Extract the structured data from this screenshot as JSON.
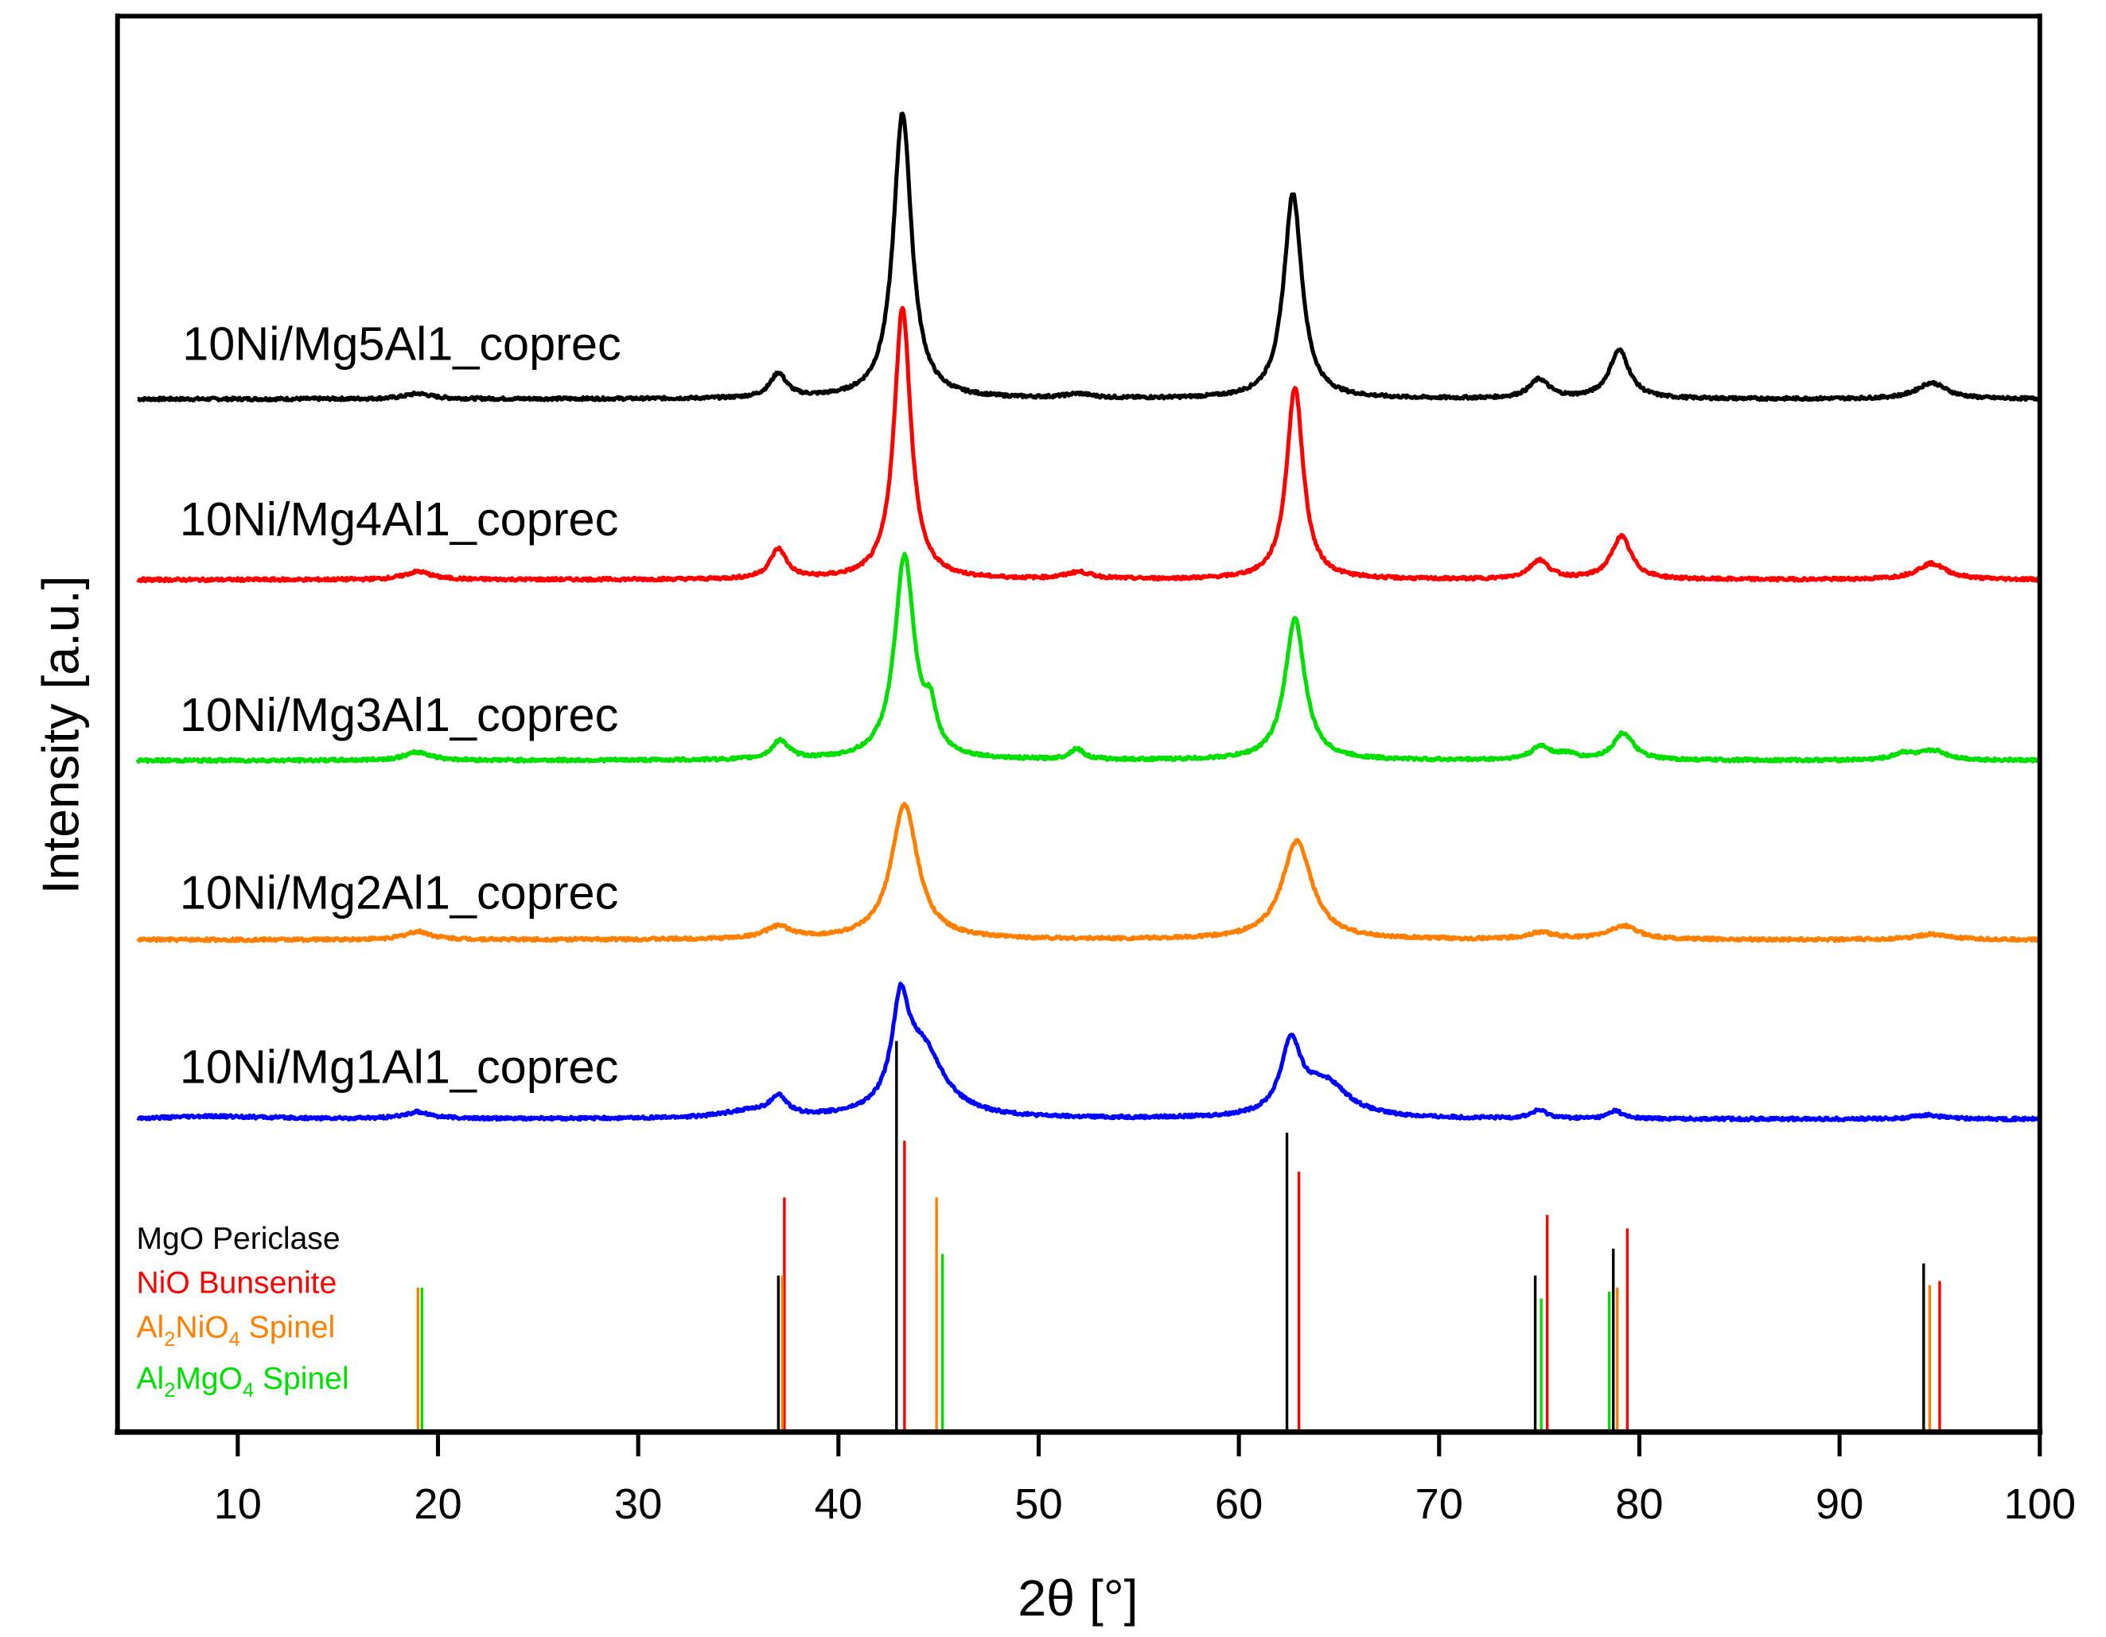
{
  "chart_data": {
    "type": "line",
    "title": "",
    "xlabel": "2θ [°]",
    "ylabel": "Intensity [a.u.]",
    "xlim": [
      4,
      100
    ],
    "x_ticks": [
      10,
      20,
      30,
      40,
      50,
      60,
      70,
      80,
      90,
      100
    ],
    "y_ticks": [],
    "grid": false,
    "legend_position": "lower-left inside",
    "series": [
      {
        "name": "10Ni/Mg5Al1_coprec",
        "color": "#000000",
        "baseline": 296,
        "peaks": [
          [
            19,
            4,
            0.8
          ],
          [
            37,
            18,
            0.5
          ],
          [
            43.2,
            212,
            0.55
          ],
          [
            52,
            3,
            0.8
          ],
          [
            62.7,
            152,
            0.55
          ],
          [
            75,
            14,
            0.6
          ],
          [
            79,
            36,
            0.6
          ],
          [
            94.6,
            12,
            0.9
          ]
        ]
      },
      {
        "name": "10Ni/Mg4Al1_coprec",
        "color": "#ff0000",
        "baseline": 430,
        "peaks": [
          [
            19,
            6,
            0.8
          ],
          [
            37,
            22,
            0.5
          ],
          [
            43.2,
            202,
            0.5
          ],
          [
            52,
            5,
            0.8
          ],
          [
            62.8,
            143,
            0.5
          ],
          [
            75,
            14,
            0.6
          ],
          [
            79.1,
            32,
            0.6
          ],
          [
            94.6,
            12,
            0.9
          ]
        ]
      },
      {
        "name": "10Ni/Mg3Al1_coprec",
        "color": "#00e000",
        "baseline": 564,
        "peaks": [
          [
            19,
            6,
            0.8
          ],
          [
            37.1,
            14,
            0.5
          ],
          [
            43.3,
            150,
            0.6
          ],
          [
            44.6,
            28,
            0.35
          ],
          [
            51.9,
            8,
            0.4
          ],
          [
            62.8,
            105,
            0.6
          ],
          [
            75.1,
            10,
            0.6
          ],
          [
            76.4,
            4,
            0.5
          ],
          [
            79.2,
            20,
            0.6
          ],
          [
            93.2,
            5,
            0.6
          ],
          [
            94.7,
            7,
            0.8
          ]
        ]
      },
      {
        "name": "10Ni/Mg2Al1_coprec",
        "color": "#ff8000",
        "baseline": 697,
        "peaks": [
          [
            19,
            6,
            0.8
          ],
          [
            37,
            9,
            0.8
          ],
          [
            43.3,
            100,
            0.8
          ],
          [
            62.9,
            73,
            0.9
          ],
          [
            75.1,
            5,
            0.8
          ],
          [
            79.2,
            10,
            0.9
          ],
          [
            94.6,
            4,
            1.0
          ]
        ]
      },
      {
        "name": "10Ni/Mg1Al1_coprec",
        "color": "#0000ff",
        "baseline": 830,
        "peaks": [
          [
            9,
            2,
            3
          ],
          [
            19,
            5,
            0.8
          ],
          [
            35.5,
            5,
            1.5
          ],
          [
            37,
            14,
            0.5
          ],
          [
            43.1,
            70,
            0.5
          ],
          [
            44.2,
            50,
            1.3
          ],
          [
            62.6,
            52,
            0.6
          ],
          [
            64.3,
            26,
            1.4
          ],
          [
            75,
            6,
            0.5
          ],
          [
            78.8,
            6,
            0.4
          ],
          [
            94.4,
            3,
            0.8
          ]
        ]
      }
    ],
    "reference_patterns": [
      {
        "name": "MgO Periclase",
        "color": "#000000",
        "lines": [
          [
            37.0,
            116
          ],
          [
            42.9,
            290
          ],
          [
            62.4,
            222
          ],
          [
            74.8,
            116
          ],
          [
            78.7,
            136
          ],
          [
            94.2,
            125
          ]
        ]
      },
      {
        "name": "NiO Bunsenite",
        "color": "#ff0000",
        "lines": [
          [
            37.3,
            174
          ],
          [
            43.3,
            216
          ],
          [
            63.0,
            193
          ],
          [
            75.4,
            161
          ],
          [
            79.4,
            151
          ],
          [
            95.0,
            112
          ]
        ]
      },
      {
        "name": "Al2NiO4 Spinel",
        "color": "#ff8000",
        "lines": [
          [
            19.0,
            107
          ],
          [
            37.2,
            116
          ],
          [
            44.9,
            174
          ],
          [
            78.9,
            107
          ],
          [
            94.5,
            109
          ]
        ]
      },
      {
        "name": "Al2MgO4 Spinel",
        "color": "#00e000",
        "lines": [
          [
            19.2,
            107
          ],
          [
            45.2,
            132
          ],
          [
            75.1,
            99
          ],
          [
            78.5,
            104
          ]
        ]
      }
    ]
  },
  "labels": {
    "xlabel": "2θ [°]",
    "ylabel": "Intensity [a.u.]",
    "series": [
      "10Ni/Mg5Al1_coprec",
      "10Ni/Mg4Al1_coprec",
      "10Ni/Mg3Al1_coprec",
      "10Ni/Mg2Al1_coprec",
      "10Ni/Mg1Al1_coprec"
    ],
    "legend": {
      "mgo": "MgO Periclase",
      "nio": "NiO Bunsenite",
      "alnio_a": "Al",
      "alnio_s1": "2",
      "alnio_b": "NiO",
      "alnio_s2": "4",
      "alnio_c": " Spinel",
      "almgo_a": "Al",
      "almgo_s1": "2",
      "almgo_b": "MgO",
      "almgo_s2": "4",
      "almgo_c": " Spinel"
    },
    "ticks": [
      "10",
      "20",
      "30",
      "40",
      "50",
      "60",
      "70",
      "80",
      "90",
      "100"
    ]
  }
}
